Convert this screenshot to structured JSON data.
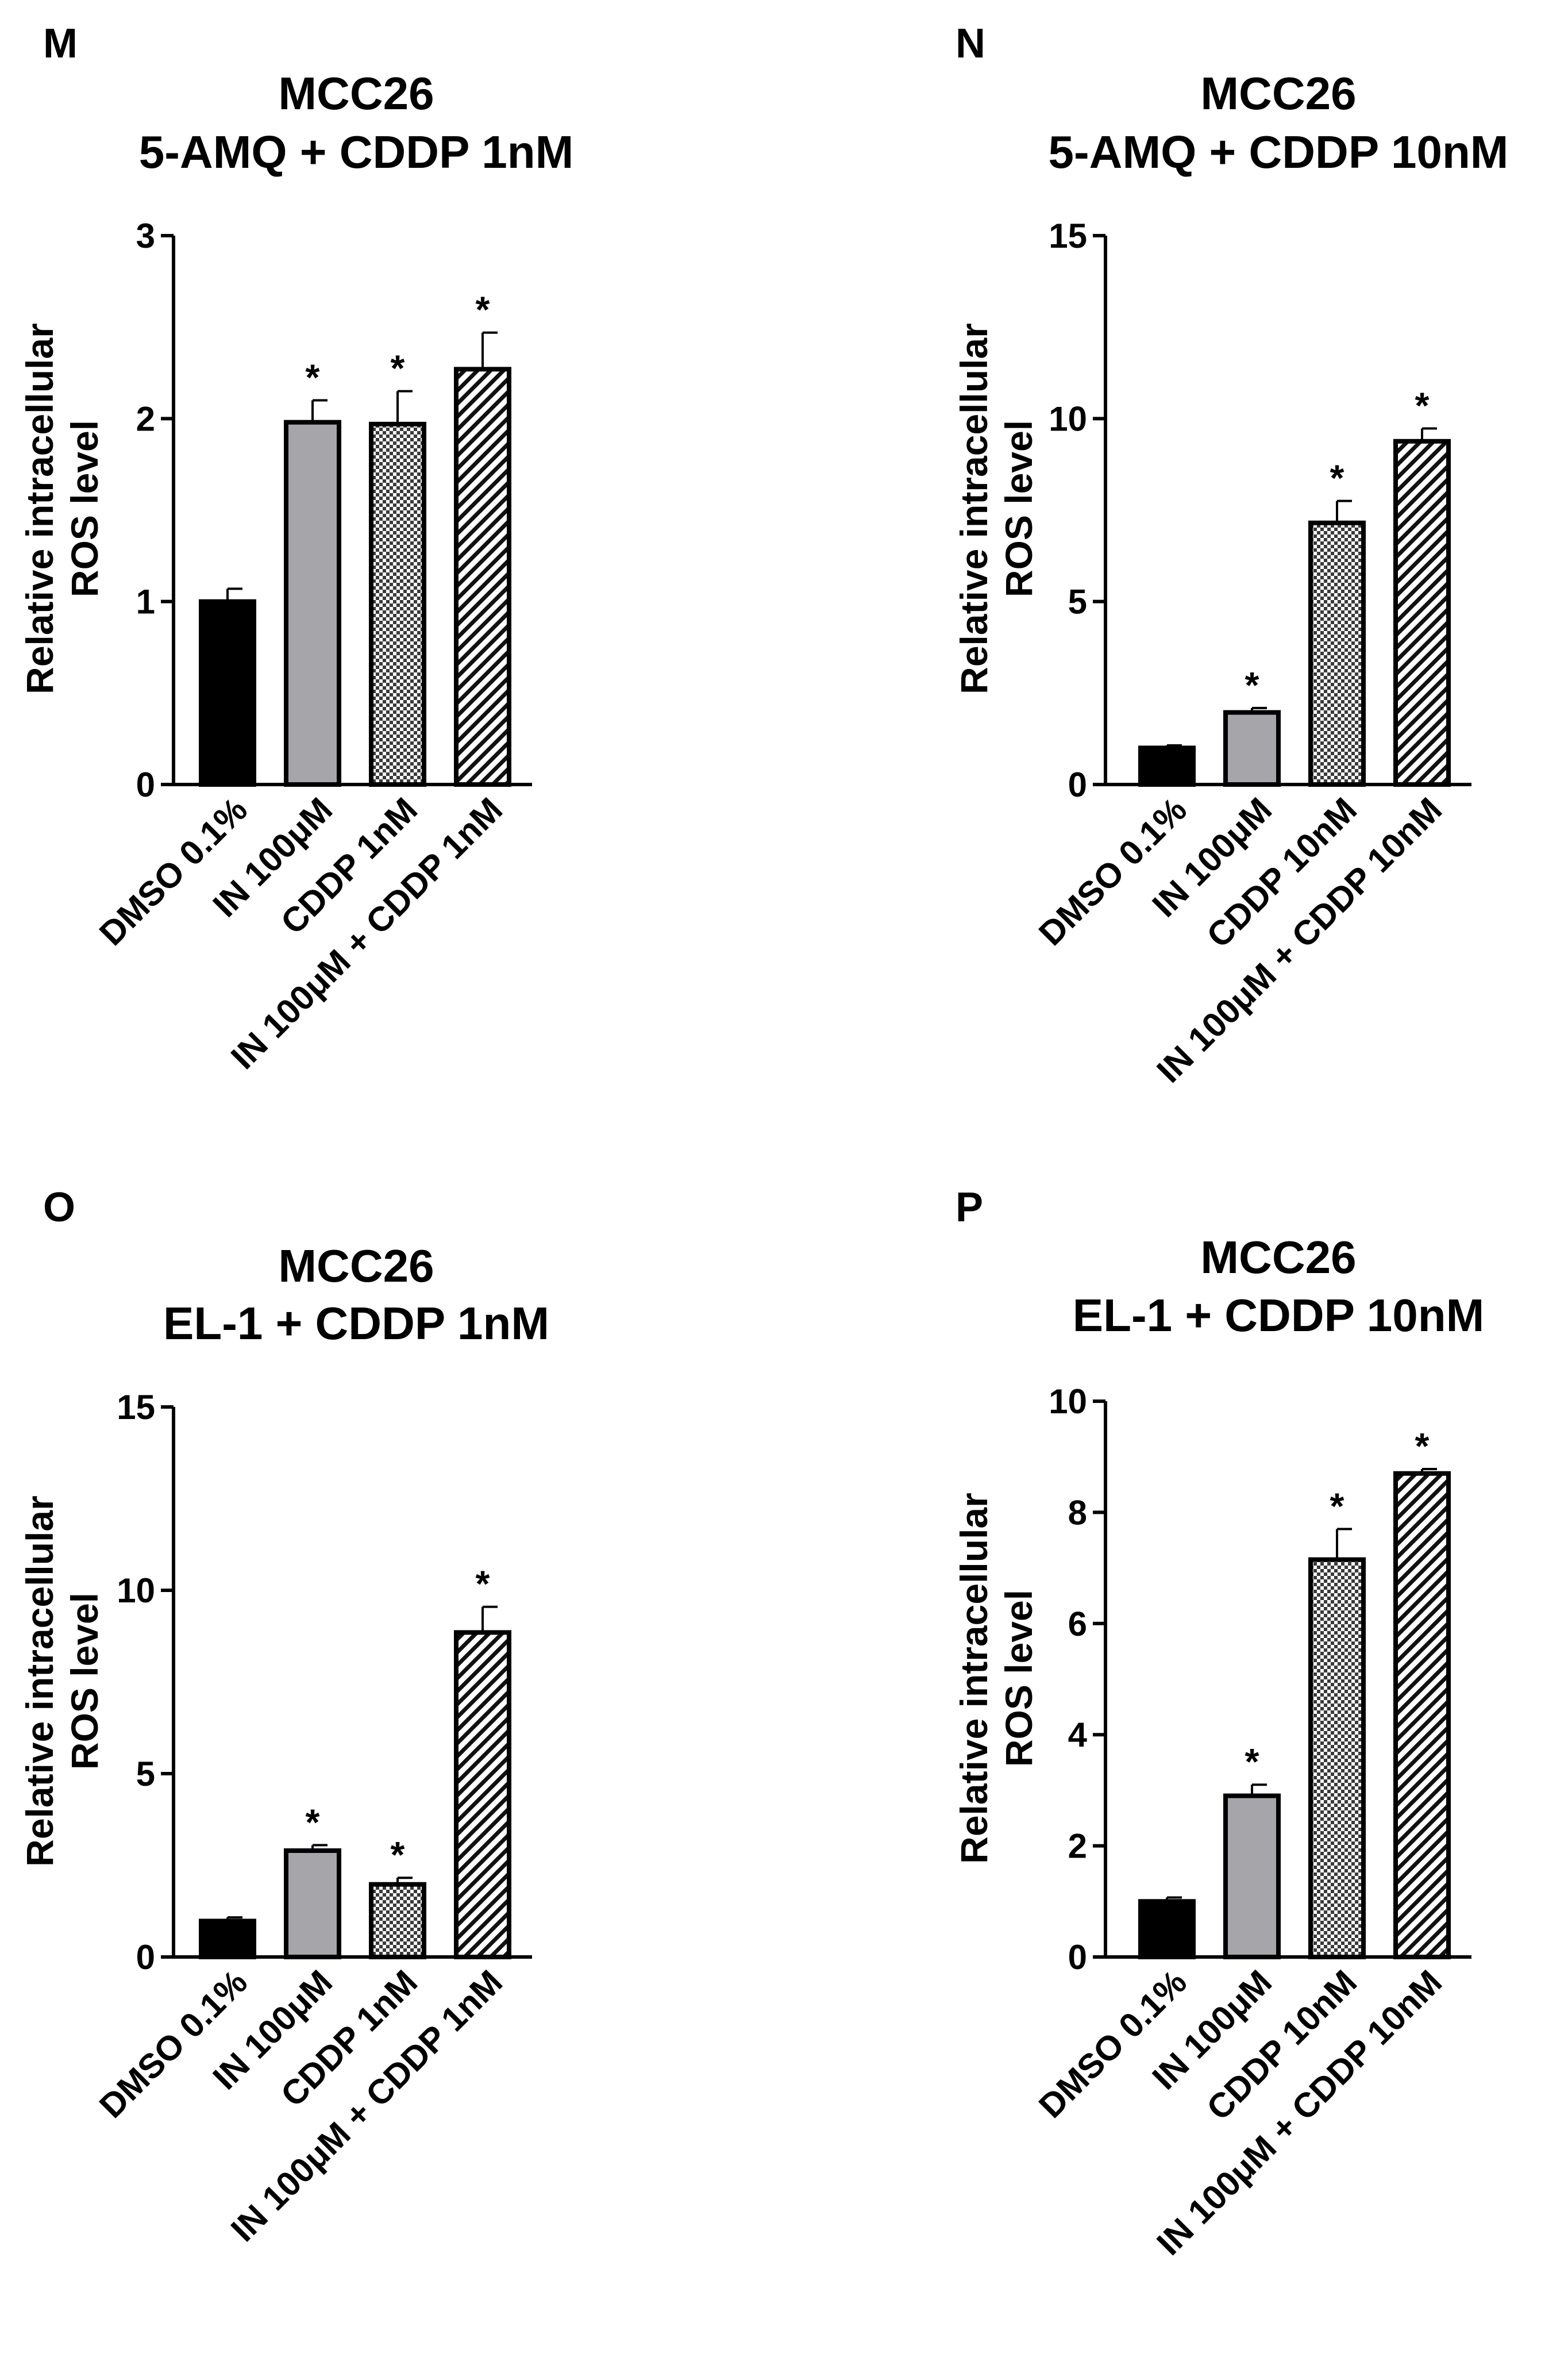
{
  "colors": {
    "dmso": "#000000",
    "in": "#a6a6aa",
    "cddp_checker": "#3a3a3a",
    "combo_hatch": "#111111",
    "axis": "#000000"
  },
  "chart_data": [
    {
      "panel": "M",
      "type": "bar",
      "title": [
        "MCC26",
        "5-AMQ + CDDP 1nM"
      ],
      "ylabel": [
        "Relative intracellular",
        "ROS level"
      ],
      "xlabel": "",
      "ylim": [
        0,
        3
      ],
      "yticks": [
        "0",
        "1",
        "2",
        "3"
      ],
      "categories": [
        "DMSO 0.1%",
        "IN 100μM",
        "CDDP 1nM",
        "IN 100μM + CDDP 1nM"
      ],
      "values": [
        1.0,
        1.98,
        1.97,
        2.27
      ],
      "errors": [
        0.07,
        0.12,
        0.18,
        0.2
      ],
      "significance": [
        "",
        "*",
        "*",
        "*"
      ]
    },
    {
      "panel": "N",
      "type": "bar",
      "title": [
        "MCC26",
        "5-AMQ + CDDP 10nM"
      ],
      "ylabel": [
        "Relative intracellular",
        "ROS level"
      ],
      "xlabel": "",
      "ylim": [
        0,
        15
      ],
      "yticks": [
        "0",
        "5",
        "10",
        "15"
      ],
      "categories": [
        "DMSO 0.1%",
        "IN 100μM",
        "CDDP 10nM",
        "IN 100μM + CDDP 10nM"
      ],
      "values": [
        1.0,
        1.97,
        7.15,
        9.38
      ],
      "errors": [
        0.07,
        0.12,
        0.6,
        0.35
      ],
      "significance": [
        "",
        "*",
        "*",
        "*"
      ]
    },
    {
      "panel": "O",
      "type": "bar",
      "title": [
        "MCC26",
        "EL-1 + CDDP 1nM"
      ],
      "ylabel": [
        "Relative intracellular",
        "ROS level"
      ],
      "xlabel": "",
      "ylim": [
        0,
        15
      ],
      "yticks": [
        "0",
        "5",
        "10",
        "15"
      ],
      "categories": [
        "DMSO 0.1%",
        "IN 100μM",
        "CDDP 1nM",
        "IN 100μM + CDDP 1nM"
      ],
      "values": [
        0.98,
        2.9,
        1.98,
        8.85
      ],
      "errors": [
        0.1,
        0.15,
        0.18,
        0.7
      ],
      "significance": [
        "",
        "*",
        "*",
        "*"
      ]
    },
    {
      "panel": "P",
      "type": "bar",
      "title": [
        "MCC26",
        "EL-1 + CDDP 10nM"
      ],
      "ylabel": [
        "Relative intracellular",
        "ROS level"
      ],
      "xlabel": "",
      "ylim": [
        0,
        10
      ],
      "yticks": [
        "0",
        "2",
        "4",
        "6",
        "8",
        "10"
      ],
      "categories": [
        "DMSO 0.1%",
        "IN 100μM",
        "CDDP 10nM",
        "IN 100μM + CDDP 10nM"
      ],
      "values": [
        1.0,
        2.9,
        7.15,
        8.7
      ],
      "errors": [
        0.07,
        0.2,
        0.55,
        0.08
      ],
      "significance": [
        "",
        "*",
        "*",
        "*"
      ]
    }
  ]
}
